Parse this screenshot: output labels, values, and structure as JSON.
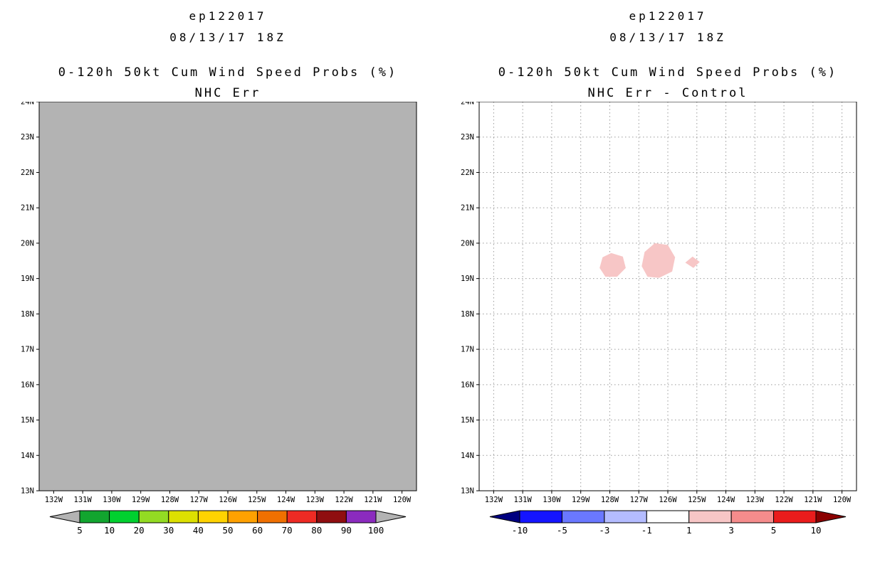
{
  "chart_data": [
    {
      "type": "heatmap",
      "panel": "left",
      "storm_id": "ep122017",
      "init_time": "08/13/17 18Z",
      "title": "0-120h 50kt Cum Wind Speed Probs (%)",
      "subtitle": "NHC Err",
      "lon_range": [
        132.5,
        119.5
      ],
      "lat_range": [
        24,
        13
      ],
      "grid": false,
      "map_fill": "#b3b3b3",
      "field_note": "entire domain shaded gray: values below lowest contour (5%)",
      "feature_fill": "#f7c6c6",
      "features": [],
      "lat_ticks": [
        {
          "label": "24N",
          "value": 24
        },
        {
          "label": "23N",
          "value": 23
        },
        {
          "label": "22N",
          "value": 22
        },
        {
          "label": "21N",
          "value": 21
        },
        {
          "label": "20N",
          "value": 20
        },
        {
          "label": "19N",
          "value": 19
        },
        {
          "label": "18N",
          "value": 18
        },
        {
          "label": "17N",
          "value": 17
        },
        {
          "label": "16N",
          "value": 16
        },
        {
          "label": "15N",
          "value": 15
        },
        {
          "label": "14N",
          "value": 14
        },
        {
          "label": "13N",
          "value": 13
        }
      ],
      "lon_ticks": [
        {
          "label": "132W",
          "value": 132
        },
        {
          "label": "131W",
          "value": 131
        },
        {
          "label": "130W",
          "value": 130
        },
        {
          "label": "129W",
          "value": 129
        },
        {
          "label": "128W",
          "value": 128
        },
        {
          "label": "127W",
          "value": 127
        },
        {
          "label": "126W",
          "value": 126
        },
        {
          "label": "125W",
          "value": 125
        },
        {
          "label": "124W",
          "value": 124
        },
        {
          "label": "123W",
          "value": 123
        },
        {
          "label": "122W",
          "value": 122
        },
        {
          "label": "121W",
          "value": 121
        },
        {
          "label": "120W",
          "value": 120
        }
      ],
      "colorbar": {
        "labels": [
          "5",
          "10",
          "20",
          "30",
          "40",
          "50",
          "60",
          "70",
          "80",
          "90",
          "100"
        ],
        "values": [
          5,
          10,
          20,
          30,
          40,
          50,
          60,
          70,
          80,
          90,
          100
        ],
        "segment_colors": [
          "#12a52f",
          "#00d02f",
          "#93db23",
          "#dde000",
          "#ffd300",
          "#ffa100",
          "#f07000",
          "#ee2b24",
          "#8f0e10",
          "#8b2bbe"
        ],
        "left_arrow_color": "#b3b3b3",
        "right_arrow_color": "#b3b3b3"
      }
    },
    {
      "type": "heatmap",
      "panel": "right",
      "storm_id": "ep122017",
      "init_time": "08/13/17 18Z",
      "title": "0-120h 50kt Cum Wind Speed Probs (%)",
      "subtitle": "NHC Err - Control",
      "lon_range": [
        132.5,
        119.5
      ],
      "lat_range": [
        24,
        13
      ],
      "grid": true,
      "map_fill": "#ffffff",
      "field_note": "difference field mostly 0; three small positive regions (1 to 3%) near 19-20N, 124.9-128.4W",
      "feature_fill": "#f7c6c6",
      "features": [
        {
          "name": "positive-diff-blob-west",
          "value_range": "1 to 3",
          "points": [
            [
              128.35,
              19.3
            ],
            [
              128.25,
              19.6
            ],
            [
              127.95,
              19.72
            ],
            [
              127.55,
              19.62
            ],
            [
              127.45,
              19.3
            ],
            [
              127.75,
              19.05
            ],
            [
              128.15,
              19.05
            ]
          ]
        },
        {
          "name": "positive-diff-blob-center",
          "value_range": "1 to 3",
          "points": [
            [
              126.9,
              19.35
            ],
            [
              126.8,
              19.75
            ],
            [
              126.45,
              20.0
            ],
            [
              126.0,
              19.95
            ],
            [
              125.75,
              19.6
            ],
            [
              125.85,
              19.2
            ],
            [
              126.3,
              19.02
            ],
            [
              126.7,
              19.05
            ]
          ]
        },
        {
          "name": "positive-diff-blob-east",
          "value_range": "1 to 3",
          "points": [
            [
              125.4,
              19.45
            ],
            [
              125.15,
              19.62
            ],
            [
              124.9,
              19.47
            ],
            [
              125.12,
              19.3
            ]
          ]
        }
      ],
      "lat_ticks": [
        {
          "label": "24N",
          "value": 24
        },
        {
          "label": "23N",
          "value": 23
        },
        {
          "label": "22N",
          "value": 22
        },
        {
          "label": "21N",
          "value": 21
        },
        {
          "label": "20N",
          "value": 20
        },
        {
          "label": "19N",
          "value": 19
        },
        {
          "label": "18N",
          "value": 18
        },
        {
          "label": "17N",
          "value": 17
        },
        {
          "label": "16N",
          "value": 16
        },
        {
          "label": "15N",
          "value": 15
        },
        {
          "label": "14N",
          "value": 14
        },
        {
          "label": "13N",
          "value": 13
        }
      ],
      "lon_ticks": [
        {
          "label": "132W",
          "value": 132
        },
        {
          "label": "131W",
          "value": 131
        },
        {
          "label": "130W",
          "value": 130
        },
        {
          "label": "129W",
          "value": 129
        },
        {
          "label": "128W",
          "value": 128
        },
        {
          "label": "127W",
          "value": 127
        },
        {
          "label": "126W",
          "value": 126
        },
        {
          "label": "125W",
          "value": 125
        },
        {
          "label": "124W",
          "value": 124
        },
        {
          "label": "123W",
          "value": 123
        },
        {
          "label": "122W",
          "value": 122
        },
        {
          "label": "121W",
          "value": 121
        },
        {
          "label": "120W",
          "value": 120
        }
      ],
      "colorbar": {
        "labels": [
          "-10",
          "-5",
          "-3",
          "-1",
          "1",
          "3",
          "5",
          "10"
        ],
        "values": [
          -10,
          -5,
          -3,
          -1,
          1,
          3,
          5,
          10
        ],
        "segment_colors": [
          "#1414ff",
          "#6a78ff",
          "#b4bcff",
          "#ffffff",
          "#f7c6c6",
          "#f58c8c",
          "#ea1c1c"
        ],
        "left_arrow_color": "#000080",
        "right_arrow_color": "#8b0000"
      }
    }
  ]
}
